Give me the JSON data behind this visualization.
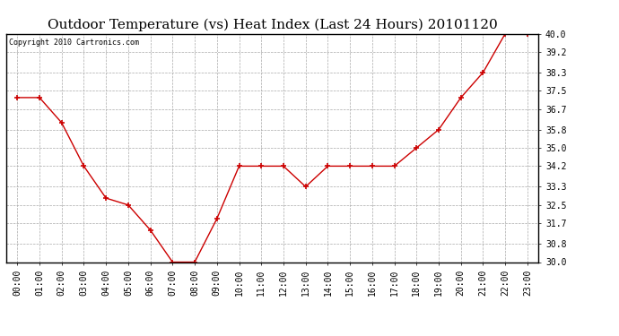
{
  "title": "Outdoor Temperature (vs) Heat Index (Last 24 Hours) 20101120",
  "copyright": "Copyright 2010 Cartronics.com",
  "x_labels": [
    "00:00",
    "01:00",
    "02:00",
    "03:00",
    "04:00",
    "05:00",
    "06:00",
    "07:00",
    "08:00",
    "09:00",
    "10:00",
    "11:00",
    "12:00",
    "13:00",
    "14:00",
    "15:00",
    "16:00",
    "17:00",
    "18:00",
    "19:00",
    "20:00",
    "21:00",
    "22:00",
    "23:00"
  ],
  "y_values": [
    37.2,
    37.2,
    36.1,
    34.2,
    32.8,
    32.5,
    31.4,
    30.0,
    30.0,
    31.9,
    34.2,
    34.2,
    34.2,
    33.3,
    34.2,
    34.2,
    34.2,
    34.2,
    35.0,
    35.8,
    37.2,
    38.3,
    40.0,
    40.0
  ],
  "ylim_min": 30.0,
  "ylim_max": 40.0,
  "yticks": [
    30.0,
    30.8,
    31.7,
    32.5,
    33.3,
    34.2,
    35.0,
    35.8,
    36.7,
    37.5,
    38.3,
    39.2,
    40.0
  ],
  "line_color": "#cc0000",
  "marker": "+",
  "marker_size": 5,
  "marker_edge_width": 1.2,
  "line_width": 1.0,
  "bg_color": "#ffffff",
  "grid_color": "#aaaaaa",
  "title_fontsize": 11,
  "tick_fontsize": 7,
  "copyright_fontsize": 6
}
